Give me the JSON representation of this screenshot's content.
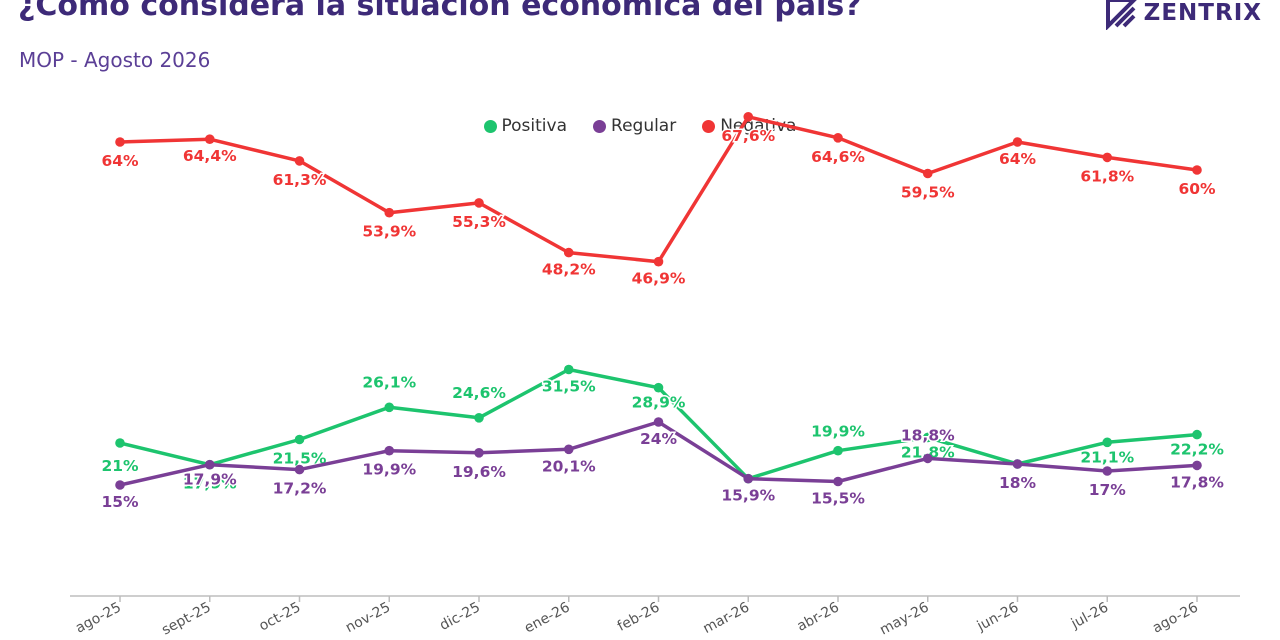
{
  "header": {
    "title": "¿Cómo considera la situación económica del país?",
    "subtitle": "MOP - Agosto 2026",
    "logo_text": "ZENTRIX"
  },
  "chart_data": {
    "type": "line",
    "title": "¿Cómo considera la situación económica del país?",
    "subtitle": "MOP - Agosto 2026",
    "xlabel": "",
    "ylabel": "",
    "categories": [
      "ago-25",
      "sept-25",
      "oct-25",
      "nov-25",
      "dic-25",
      "ene-26",
      "feb-26",
      "mar-26",
      "abr-26",
      "may-26",
      "jun-26",
      "jul-26",
      "ago-26"
    ],
    "series": [
      {
        "name": "Positiva",
        "color": "#1dc46e",
        "values": [
          21,
          17.9,
          21.5,
          26.1,
          24.6,
          31.5,
          28.9,
          15.9,
          19.9,
          21.8,
          18,
          21.1,
          22.2
        ],
        "labels": [
          "21%",
          "17,9%",
          "21,5%",
          "26,1%",
          "24,6%",
          "31,5%",
          "28,9%",
          "15,9%",
          "19,9%",
          "21,8%",
          "18%",
          "21,1%",
          "22,2%"
        ]
      },
      {
        "name": "Regular",
        "color": "#7a3f96",
        "values": [
          15,
          17.9,
          17.2,
          19.9,
          19.6,
          20.1,
          24,
          15.9,
          15.5,
          18.8,
          18,
          17,
          17.8
        ],
        "labels": [
          "15%",
          "17,9%",
          "17,2%",
          "19,9%",
          "19,6%",
          "20,1%",
          "24%",
          "15,9%",
          "15,5%",
          "18,8%",
          "18%",
          "17%",
          "17,8%"
        ]
      },
      {
        "name": "Negativa",
        "color": "#f03535",
        "values": [
          64,
          64.4,
          61.3,
          53.9,
          55.3,
          48.2,
          46.9,
          67.6,
          64.6,
          59.5,
          64,
          61.8,
          60
        ],
        "labels": [
          "64%",
          "64,4%",
          "61,3%",
          "53,9%",
          "55,3%",
          "48,2%",
          "46,9%",
          "67,6%",
          "64,6%",
          "59,5%",
          "64%",
          "61,8%",
          "60%"
        ]
      }
    ],
    "legend": "top-center",
    "grid": false
  }
}
